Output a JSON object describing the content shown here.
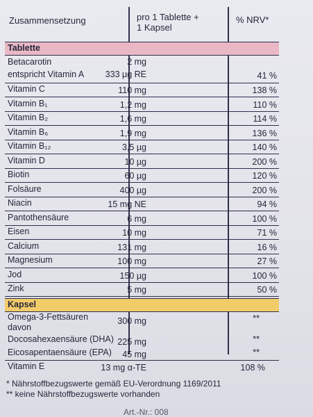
{
  "header": {
    "col1": "Zusammensetzung",
    "col2_line1": "pro 1 Tablette +",
    "col2_line2": "1 Kapsel",
    "col3": "% NRV*"
  },
  "tablette": {
    "title": "Tablette",
    "betacarotin_name": "Betacarotin",
    "betacarotin_amount": "2 mg",
    "vita_name": "entspricht Vitamin A",
    "vita_amount": "333 µg RE",
    "vita_pct": "41 %",
    "rows": [
      {
        "name": "Vitamin C",
        "amount": "110 mg",
        "pct": "138 %"
      },
      {
        "name": "Vitamin B₁",
        "amount": "1,2 mg",
        "pct": "110 %"
      },
      {
        "name": "Vitamin B₂",
        "amount": "1,6 mg",
        "pct": "114 %"
      },
      {
        "name": "Vitamin B₆",
        "amount": "1,9 mg",
        "pct": "136 %"
      },
      {
        "name": "Vitamin B₁₂",
        "amount": "3,5 µg",
        "pct": "140 %"
      },
      {
        "name": "Vitamin D",
        "amount": "10 µg",
        "pct": "200 %"
      },
      {
        "name": "Biotin",
        "amount": "60 µg",
        "pct": "120 %"
      },
      {
        "name": "Folsäure",
        "amount": "400 µg",
        "pct": "200 %"
      },
      {
        "name": "Niacin",
        "amount": "15 mg NE",
        "pct": "94 %"
      },
      {
        "name": "Pantothensäure",
        "amount": "6 mg",
        "pct": "100 %"
      },
      {
        "name": "Eisen",
        "amount": "10 mg",
        "pct": "71 %"
      },
      {
        "name": "Calcium",
        "amount": "131 mg",
        "pct": "16 %"
      },
      {
        "name": "Magnesium",
        "amount": "100 mg",
        "pct": "27 %"
      },
      {
        "name": "Jod",
        "amount": "150 µg",
        "pct": "100 %"
      },
      {
        "name": "Zink",
        "amount": "5 mg",
        "pct": "50 %"
      }
    ]
  },
  "kapsel": {
    "title": "Kapsel",
    "omega_name": "Omega-3-Fettsäuren",
    "omega_amount": "300 mg",
    "omega_pct": "**",
    "davon": "davon",
    "dha_name": "Docosahexaensäure (DHA)",
    "dha_amount": "225 mg",
    "dha_pct": "**",
    "epa_name": "Eicosapentaensäure (EPA)",
    "epa_amount": "45 mg",
    "epa_pct": "**",
    "vite_name": "Vitamin E",
    "vite_amount": "13 mg α-TE",
    "vite_pct": "108 %"
  },
  "footnotes": {
    "note1": "* Nährstoffbezugswerte gemäß EU-Verordnung 1169/2011",
    "note2": "** keine Nährstoffbezugswerte vorhanden",
    "cut_text": "Art.-Nr.: 008"
  }
}
